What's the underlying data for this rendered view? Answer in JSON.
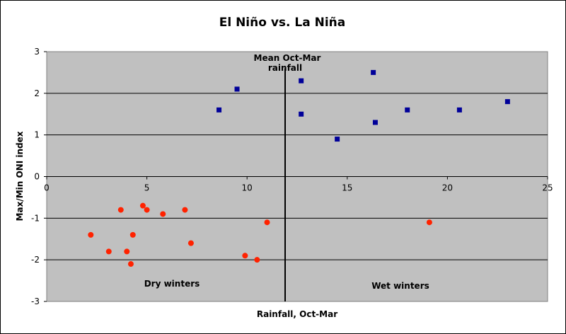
{
  "chart_data": {
    "type": "scatter",
    "title": "El Niño vs. La Niña",
    "xlabel": "Rainfall, Oct-Mar",
    "ylabel": "Max/Min ONI index",
    "xlim": [
      0,
      25
    ],
    "ylim": [
      -3,
      3
    ],
    "x_ticks": [
      "0",
      "5",
      "10",
      "15",
      "20",
      "25"
    ],
    "y_ticks": [
      "3",
      "2",
      "1",
      "0",
      "-1",
      "-2",
      "-3"
    ],
    "grid": "horizontal",
    "plot_background": "#c0c0c0",
    "mean_line_x": 11.9,
    "annotations": {
      "mean_line_label_1": "Mean Oct-Mar",
      "mean_line_label_2": "rainfall",
      "dry": "Dry winters",
      "wet": "Wet winters"
    },
    "series": [
      {
        "marker": "square",
        "color": "#000099",
        "points": [
          [
            8.6,
            1.6
          ],
          [
            9.5,
            2.1
          ],
          [
            12.7,
            2.3
          ],
          [
            12.7,
            1.5
          ],
          [
            14.5,
            0.9
          ],
          [
            16.3,
            2.5
          ],
          [
            16.4,
            1.3
          ],
          [
            18.0,
            1.6
          ],
          [
            20.6,
            1.6
          ],
          [
            23.0,
            1.8
          ]
        ]
      },
      {
        "marker": "circle",
        "color": "#ff2200",
        "points": [
          [
            2.2,
            -1.4
          ],
          [
            3.1,
            -1.8
          ],
          [
            3.7,
            -0.8
          ],
          [
            4.0,
            -1.8
          ],
          [
            4.2,
            -2.1
          ],
          [
            4.3,
            -1.4
          ],
          [
            4.8,
            -0.7
          ],
          [
            5.0,
            -0.8
          ],
          [
            5.8,
            -0.9
          ],
          [
            6.9,
            -0.8
          ],
          [
            7.2,
            -1.6
          ],
          [
            9.9,
            -1.9
          ],
          [
            10.5,
            -2.0
          ],
          [
            11.0,
            -1.1
          ],
          [
            19.1,
            -1.1
          ]
        ]
      }
    ]
  }
}
